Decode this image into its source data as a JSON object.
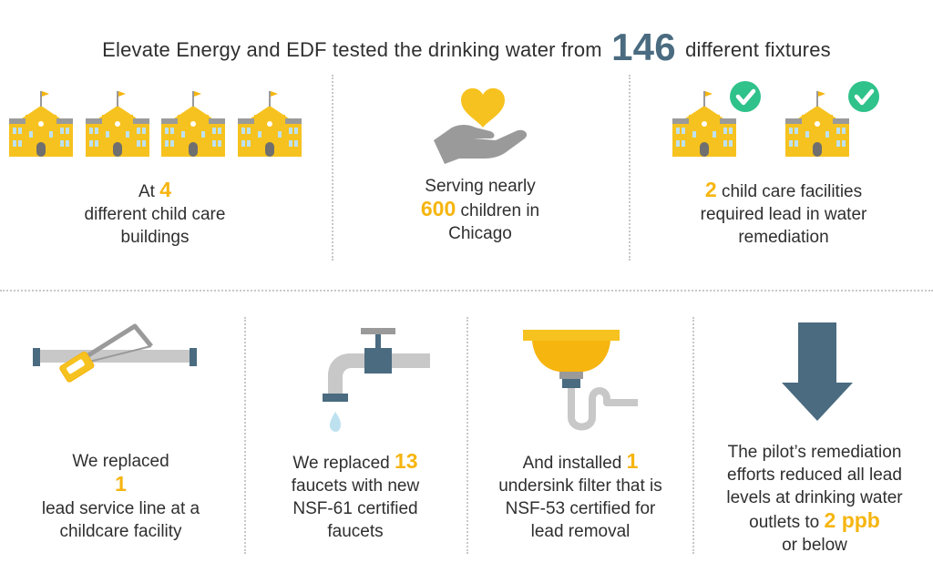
{
  "header": {
    "prefix": "Elevate Energy and EDF tested the drinking water from",
    "number": "146",
    "suffix": "different fixtures"
  },
  "top": {
    "buildings": {
      "line1_pre": "At",
      "number": "4",
      "line2": "different child care",
      "line3": "buildings"
    },
    "children": {
      "line1": "Serving nearly",
      "number": "600",
      "line2_post": "children in",
      "line3": "Chicago"
    },
    "remediation": {
      "number": "2",
      "line1_post": "child care facilities",
      "line2": "required lead in water",
      "line3": "remediation"
    }
  },
  "bottom": {
    "service_line": {
      "line1": "We replaced",
      "number": "1",
      "line3": "lead service line at a",
      "line4": "childcare facility"
    },
    "faucets": {
      "line1_pre": "We replaced",
      "number": "13",
      "line2": "faucets with new",
      "line3": "NSF-61 certified",
      "line4": "faucets"
    },
    "filter": {
      "line1_pre": "And installed",
      "number": "1",
      "line2": "undersink filter that is",
      "line3": "NSF-53 certified for",
      "line4": "lead removal"
    },
    "result": {
      "line1": "The pilot’s remediation",
      "line2": "efforts reduced all lead",
      "line3": "levels at drinking water",
      "line4_pre": "outlets to",
      "number": "2 ppb",
      "line5": "or below"
    }
  },
  "colors": {
    "accent": "#f6b50f",
    "slate": "#4a6b80",
    "gray": "#c4c4c4",
    "building": "#f6c21f",
    "roof": "#9a9a9a",
    "check": "#2fc28a"
  },
  "icons": [
    "school-building-icon",
    "heart-hand-icon",
    "check-circle-icon",
    "pipe-saw-icon",
    "faucet-icon",
    "sink-filter-icon",
    "down-arrow-icon"
  ]
}
